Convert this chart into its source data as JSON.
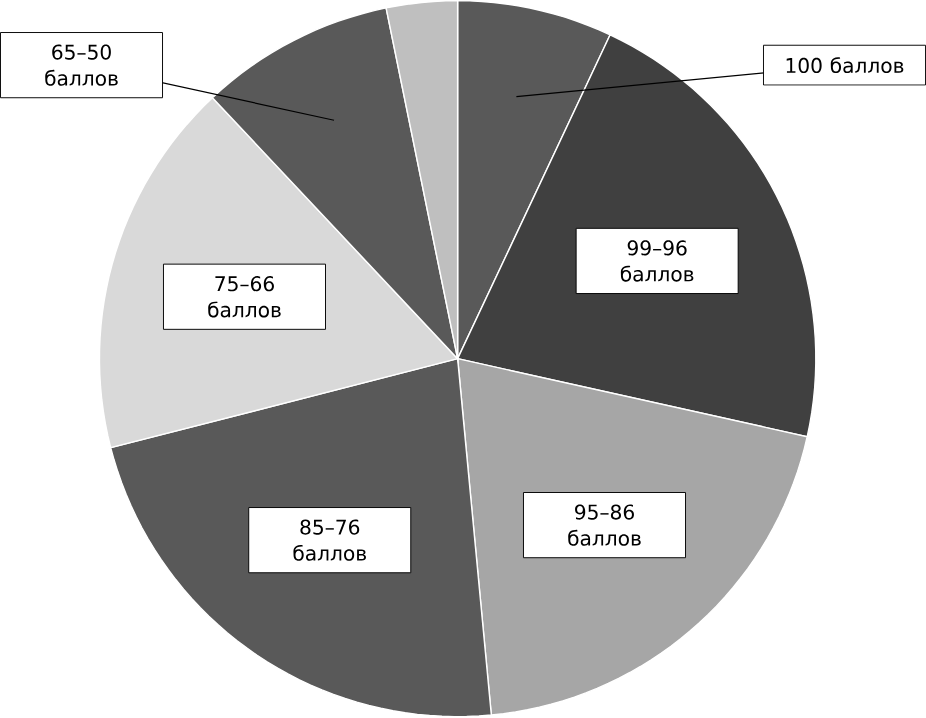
{
  "chart_data": {
    "type": "pie",
    "categories": [
      "100 баллов",
      "99–96 баллов",
      "95–86 баллов",
      "85–76 баллов",
      "75–66 баллов",
      "65–50 баллов",
      null
    ],
    "values": [
      7,
      21.5,
      20,
      22.5,
      17,
      8.8,
      3.2
    ],
    "colors": [
      "#595959",
      "#404040",
      "#a6a6a6",
      "#595959",
      "#d9d9d9",
      "#595959",
      "#bfbfbf"
    ]
  }
}
